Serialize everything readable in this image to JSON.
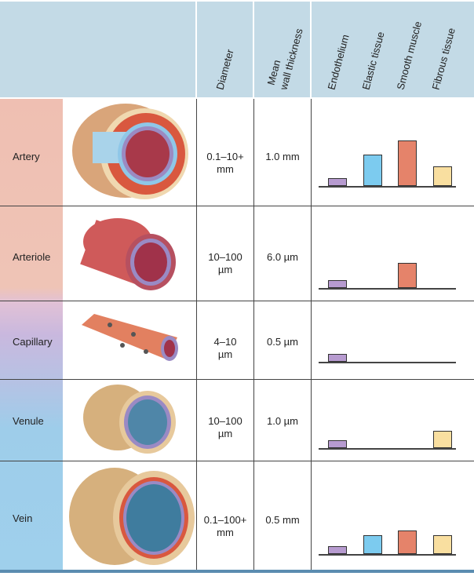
{
  "header": {
    "columns": [
      "Diameter",
      "Mean\nwall thickness",
      "Endothelium",
      "Elastic tissue",
      "Smooth muscle",
      "Fibrous tissue"
    ],
    "diameter": "Diameter",
    "wall_line1": "Mean",
    "wall_line2": "wall thickness",
    "tissues": [
      "Endothelium",
      "Elastic tissue",
      "Smooth muscle",
      "Fibrous tissue"
    ]
  },
  "rows": [
    {
      "name": "Artery",
      "diameter_1": "0.1–10+",
      "diameter_2": "mm",
      "wall": "1.0 mm"
    },
    {
      "name": "Arteriole",
      "diameter_1": "10–100",
      "diameter_2": "µm",
      "wall": "6.0 µm"
    },
    {
      "name": "Capillary",
      "diameter_1": "4–10",
      "diameter_2": "µm",
      "wall": "0.5 µm"
    },
    {
      "name": "Venule",
      "diameter_1": "10–100",
      "diameter_2": "µm",
      "wall": "1.0 µm"
    },
    {
      "name": "Vein",
      "diameter_1": "0.1–100+",
      "diameter_2": "mm",
      "wall": "0.5 mm"
    }
  ],
  "chart_data": {
    "type": "bar",
    "categories": [
      "Endothelium",
      "Elastic tissue",
      "Smooth muscle",
      "Fibrous tissue"
    ],
    "colors": [
      "#b79bd0",
      "#7ccbef",
      "#e5836a",
      "#f9dfa0"
    ],
    "series": [
      {
        "name": "Artery",
        "values": [
          10,
          40,
          58,
          25
        ]
      },
      {
        "name": "Arteriole",
        "values": [
          10,
          0,
          32,
          0
        ]
      },
      {
        "name": "Capillary",
        "values": [
          10,
          0,
          0,
          0
        ]
      },
      {
        "name": "Venule",
        "values": [
          10,
          0,
          0,
          22
        ]
      },
      {
        "name": "Vein",
        "values": [
          10,
          24,
          30,
          24
        ]
      }
    ]
  }
}
